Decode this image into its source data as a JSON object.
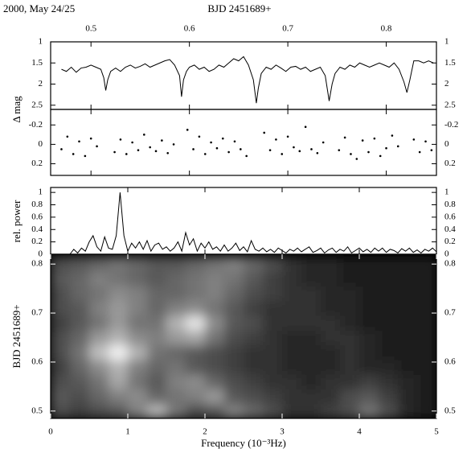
{
  "chart_data": [
    {
      "type": "line",
      "title": "2000, May 24/25",
      "xlabel": "BJD 2451689+",
      "ylabel": "Δ mag",
      "color": "#000000",
      "x": [
        0.47,
        0.475,
        0.48,
        0.485,
        0.49,
        0.495,
        0.5,
        0.505,
        0.51,
        0.513,
        0.515,
        0.517,
        0.52,
        0.525,
        0.53,
        0.535,
        0.54,
        0.545,
        0.55,
        0.555,
        0.56,
        0.565,
        0.57,
        0.575,
        0.58,
        0.585,
        0.59,
        0.592,
        0.594,
        0.597,
        0.6,
        0.605,
        0.61,
        0.615,
        0.62,
        0.625,
        0.63,
        0.635,
        0.64,
        0.645,
        0.65,
        0.655,
        0.66,
        0.665,
        0.668,
        0.67,
        0.673,
        0.678,
        0.683,
        0.688,
        0.693,
        0.698,
        0.703,
        0.708,
        0.713,
        0.718,
        0.723,
        0.728,
        0.733,
        0.738,
        0.742,
        0.745,
        0.748,
        0.753,
        0.758,
        0.763,
        0.768,
        0.773,
        0.778,
        0.783,
        0.788,
        0.793,
        0.798,
        0.803,
        0.808,
        0.813,
        0.818,
        0.821,
        0.824,
        0.828,
        0.833,
        0.838,
        0.843,
        0.848
      ],
      "values": [
        1.65,
        1.7,
        1.6,
        1.72,
        1.62,
        1.6,
        1.55,
        1.6,
        1.65,
        1.85,
        2.15,
        1.9,
        1.7,
        1.62,
        1.7,
        1.6,
        1.55,
        1.62,
        1.58,
        1.52,
        1.6,
        1.55,
        1.5,
        1.45,
        1.42,
        1.55,
        1.8,
        2.3,
        1.9,
        1.7,
        1.6,
        1.55,
        1.65,
        1.6,
        1.7,
        1.65,
        1.55,
        1.6,
        1.5,
        1.4,
        1.45,
        1.35,
        1.55,
        1.9,
        2.45,
        2.1,
        1.75,
        1.6,
        1.65,
        1.55,
        1.62,
        1.7,
        1.6,
        1.58,
        1.65,
        1.6,
        1.7,
        1.65,
        1.6,
        1.8,
        2.4,
        2.0,
        1.75,
        1.6,
        1.65,
        1.55,
        1.6,
        1.5,
        1.55,
        1.6,
        1.55,
        1.5,
        1.55,
        1.6,
        1.5,
        1.65,
        1.95,
        2.2,
        1.9,
        1.45,
        1.45,
        1.5,
        1.45,
        1.5
      ],
      "xlim": [
        0.459,
        0.851
      ],
      "xticks": [
        0.5,
        0.6,
        0.7,
        0.8
      ],
      "ylim": [
        1,
        2.6
      ],
      "y_inverted": true,
      "yticks": [
        1,
        1.5,
        2,
        2.5
      ]
    },
    {
      "type": "scatter",
      "color": "#000000",
      "x": [
        0.47,
        0.476,
        0.482,
        0.488,
        0.494,
        0.5,
        0.506,
        0.524,
        0.53,
        0.536,
        0.542,
        0.548,
        0.554,
        0.56,
        0.566,
        0.572,
        0.578,
        0.584,
        0.598,
        0.604,
        0.61,
        0.616,
        0.622,
        0.628,
        0.634,
        0.64,
        0.646,
        0.652,
        0.658,
        0.676,
        0.682,
        0.688,
        0.694,
        0.7,
        0.706,
        0.712,
        0.718,
        0.724,
        0.73,
        0.736,
        0.752,
        0.758,
        0.764,
        0.77,
        0.776,
        0.782,
        0.788,
        0.794,
        0.8,
        0.806,
        0.812,
        0.828,
        0.834,
        0.84,
        0.846
      ],
      "values": [
        0.05,
        -0.08,
        0.1,
        -0.03,
        0.12,
        -0.06,
        0.02,
        0.08,
        -0.05,
        0.1,
        -0.02,
        0.06,
        -0.1,
        0.03,
        0.07,
        -0.04,
        0.09,
        0.0,
        -0.15,
        0.05,
        -0.08,
        0.1,
        -0.02,
        0.04,
        -0.06,
        0.08,
        -0.03,
        0.05,
        0.12,
        -0.12,
        0.06,
        -0.05,
        0.1,
        -0.08,
        0.03,
        0.07,
        -0.18,
        0.05,
        0.09,
        -0.02,
        0.06,
        -0.07,
        0.1,
        0.15,
        -0.04,
        0.08,
        -0.06,
        0.12,
        0.04,
        -0.09,
        0.02,
        -0.05,
        0.08,
        -0.03,
        0.06
      ],
      "xlim": [
        0.459,
        0.851
      ],
      "xticks": [
        0.5,
        0.6,
        0.7,
        0.8
      ],
      "ylim": [
        -0.36,
        0.32
      ],
      "y_inverted": true,
      "yticks": [
        -0.2,
        0,
        0.2
      ]
    },
    {
      "type": "line",
      "ylabel": "rel. power",
      "color": "#000000",
      "x": [
        0.25,
        0.3,
        0.35,
        0.4,
        0.45,
        0.5,
        0.55,
        0.6,
        0.65,
        0.7,
        0.75,
        0.8,
        0.85,
        0.9,
        0.95,
        1,
        1.05,
        1.1,
        1.15,
        1.2,
        1.25,
        1.3,
        1.35,
        1.4,
        1.45,
        1.5,
        1.55,
        1.6,
        1.65,
        1.7,
        1.75,
        1.8,
        1.85,
        1.9,
        1.95,
        2,
        2.05,
        2.1,
        2.15,
        2.2,
        2.25,
        2.3,
        2.35,
        2.4,
        2.45,
        2.5,
        2.55,
        2.6,
        2.65,
        2.7,
        2.75,
        2.8,
        2.85,
        2.9,
        2.95,
        3,
        3.05,
        3.1,
        3.15,
        3.2,
        3.25,
        3.3,
        3.35,
        3.4,
        3.45,
        3.5,
        3.55,
        3.6,
        3.65,
        3.7,
        3.75,
        3.8,
        3.85,
        3.9,
        3.95,
        4,
        4.05,
        4.1,
        4.15,
        4.2,
        4.25,
        4.3,
        4.35,
        4.4,
        4.45,
        4.5,
        4.55,
        4.6,
        4.65,
        4.7,
        4.75,
        4.8,
        4.85,
        4.9,
        4.95,
        5
      ],
      "values": [
        0.0,
        0.08,
        0.02,
        0.1,
        0.05,
        0.2,
        0.3,
        0.12,
        0.05,
        0.28,
        0.1,
        0.08,
        0.3,
        1.0,
        0.3,
        0.05,
        0.18,
        0.1,
        0.2,
        0.08,
        0.22,
        0.05,
        0.15,
        0.18,
        0.08,
        0.12,
        0.05,
        0.1,
        0.2,
        0.05,
        0.35,
        0.15,
        0.25,
        0.05,
        0.18,
        0.1,
        0.2,
        0.08,
        0.12,
        0.05,
        0.15,
        0.05,
        0.1,
        0.18,
        0.06,
        0.12,
        0.04,
        0.22,
        0.08,
        0.05,
        0.1,
        0.04,
        0.08,
        0.03,
        0.1,
        0.06,
        0.02,
        0.08,
        0.05,
        0.1,
        0.04,
        0.08,
        0.12,
        0.03,
        0.06,
        0.1,
        0.02,
        0.07,
        0.1,
        0.03,
        0.08,
        0.05,
        0.12,
        0.02,
        0.06,
        0.1,
        0.04,
        0.08,
        0.03,
        0.1,
        0.05,
        0.1,
        0.03,
        0.08,
        0.06,
        0.02,
        0.09,
        0.05,
        0.1,
        0.03,
        0.07,
        0.02,
        0.08,
        0.05,
        0.1,
        0.04
      ],
      "xlim": [
        0,
        5
      ],
      "xticks": [
        0,
        1,
        2,
        3,
        4,
        5
      ],
      "ylim": [
        0,
        1.08
      ],
      "yticks": [
        0,
        0.2,
        0.4,
        0.6,
        0.8,
        1
      ]
    },
    {
      "type": "heatmap",
      "xlabel": "Frequency (10⁻³Hz)",
      "ylabel": "BJD 2451689+",
      "x": [
        0.125,
        0.375,
        0.625,
        0.875,
        1.125,
        1.375,
        1.625,
        1.875,
        2.125,
        2.375,
        2.625,
        2.875,
        3.125,
        3.375,
        3.625,
        3.875,
        4.125,
        4.375,
        4.625,
        4.875
      ],
      "y": [
        0.5,
        0.53,
        0.56,
        0.59,
        0.62,
        0.65,
        0.68,
        0.71,
        0.74,
        0.77,
        0.8
      ],
      "z": [
        [
          0.3,
          0.25,
          0.3,
          0.35,
          0.5,
          0.7,
          0.45,
          0.3,
          0.35,
          0.5,
          0.4,
          0.3,
          0.2,
          0.2,
          0.25,
          0.3,
          0.45,
          0.3,
          0.15,
          0.1
        ],
        [
          0.35,
          0.3,
          0.4,
          0.5,
          0.55,
          0.4,
          0.45,
          0.5,
          0.6,
          0.35,
          0.3,
          0.25,
          0.2,
          0.2,
          0.2,
          0.3,
          0.35,
          0.25,
          0.15,
          0.1
        ],
        [
          0.3,
          0.35,
          0.45,
          0.65,
          0.45,
          0.35,
          0.5,
          0.55,
          0.4,
          0.3,
          0.25,
          0.2,
          0.2,
          0.15,
          0.2,
          0.2,
          0.25,
          0.2,
          0.15,
          0.1
        ],
        [
          0.25,
          0.4,
          0.55,
          0.7,
          0.5,
          0.4,
          0.45,
          0.35,
          0.3,
          0.25,
          0.2,
          0.2,
          0.15,
          0.15,
          0.15,
          0.2,
          0.15,
          0.15,
          0.1,
          0.1
        ],
        [
          0.3,
          0.45,
          0.75,
          0.95,
          0.7,
          0.45,
          0.4,
          0.35,
          0.3,
          0.25,
          0.2,
          0.2,
          0.15,
          0.15,
          0.15,
          0.2,
          0.15,
          0.1,
          0.1,
          0.1
        ],
        [
          0.3,
          0.4,
          0.6,
          0.7,
          0.55,
          0.5,
          0.6,
          0.65,
          0.45,
          0.3,
          0.25,
          0.2,
          0.15,
          0.15,
          0.2,
          0.2,
          0.15,
          0.1,
          0.1,
          0.1
        ],
        [
          0.25,
          0.35,
          0.45,
          0.6,
          0.45,
          0.45,
          0.7,
          0.9,
          0.55,
          0.35,
          0.3,
          0.2,
          0.2,
          0.2,
          0.2,
          0.15,
          0.1,
          0.1,
          0.1,
          0.1
        ],
        [
          0.3,
          0.35,
          0.5,
          0.6,
          0.5,
          0.4,
          0.5,
          0.55,
          0.45,
          0.35,
          0.25,
          0.2,
          0.2,
          0.2,
          0.15,
          0.15,
          0.1,
          0.1,
          0.1,
          0.1
        ],
        [
          0.3,
          0.4,
          0.45,
          0.55,
          0.5,
          0.4,
          0.4,
          0.45,
          0.5,
          0.4,
          0.3,
          0.25,
          0.2,
          0.2,
          0.15,
          0.15,
          0.1,
          0.1,
          0.1,
          0.1
        ],
        [
          0.35,
          0.4,
          0.5,
          0.45,
          0.4,
          0.35,
          0.4,
          0.45,
          0.5,
          0.45,
          0.35,
          0.25,
          0.2,
          0.15,
          0.15,
          0.1,
          0.1,
          0.1,
          0.1,
          0.1
        ],
        [
          0.3,
          0.35,
          0.4,
          0.45,
          0.4,
          0.35,
          0.35,
          0.4,
          0.45,
          0.5,
          0.4,
          0.3,
          0.2,
          0.15,
          0.15,
          0.1,
          0.1,
          0.1,
          0.1,
          0.1
        ]
      ],
      "xlim": [
        0,
        5
      ],
      "xticks": [
        0,
        1,
        2,
        3,
        4,
        5
      ],
      "ylim": [
        0.485,
        0.82
      ],
      "yticks": [
        0.5,
        0.6,
        0.7,
        0.8
      ]
    }
  ]
}
